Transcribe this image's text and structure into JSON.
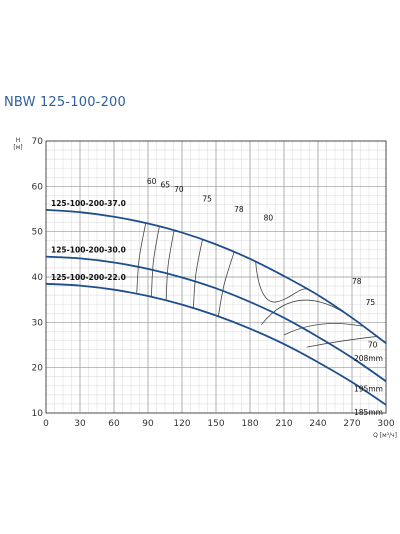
{
  "chart_data": {
    "type": "line",
    "title": "NBW 125-100-200",
    "ylabel_lines": [
      "H",
      "[м]"
    ],
    "xlabel": "Q [м³/ч]",
    "xlim": [
      0,
      300
    ],
    "ylim": [
      10,
      70
    ],
    "xticks": [
      "0",
      "30",
      "60",
      "90",
      "120",
      "150",
      "180",
      "210",
      "240",
      "270",
      "300"
    ],
    "yticks": [
      "10",
      "20",
      "30",
      "40",
      "50",
      "60",
      "70"
    ],
    "grid": true,
    "series": [
      {
        "name": "125-100-200-37.0",
        "diameter": "208mm",
        "x": [
          0,
          30,
          60,
          90,
          120,
          150,
          180,
          210,
          240,
          270,
          300
        ],
        "y": [
          54.8,
          54.3,
          53.3,
          51.8,
          49.8,
          47.2,
          44.0,
          40.2,
          36.0,
          31.0,
          25.4
        ]
      },
      {
        "name": "125-100-200-30.0",
        "diameter": "195mm",
        "x": [
          0,
          30,
          60,
          90,
          120,
          150,
          180,
          210,
          240,
          270,
          300
        ],
        "y": [
          44.5,
          44.1,
          43.2,
          41.8,
          39.9,
          37.5,
          34.5,
          31.0,
          26.8,
          22.2,
          17.0
        ]
      },
      {
        "name": "125-100-200-22.0",
        "diameter": "185mm",
        "x": [
          0,
          30,
          60,
          90,
          120,
          150,
          180,
          210,
          240,
          270,
          300
        ],
        "y": [
          38.5,
          38.1,
          37.2,
          35.8,
          33.9,
          31.5,
          28.6,
          25.2,
          21.2,
          16.8,
          11.8
        ]
      }
    ],
    "efficiency_labels": [
      "60",
      "65",
      "70",
      "75",
      "78",
      "80",
      "78",
      "75",
      "70"
    ],
    "colors": {
      "curve": "#1f4e8c",
      "grid_major": "#9a9a9a",
      "grid_minor": "#d9d9d9",
      "iso": "#444444",
      "title": "#2f5f9e"
    }
  }
}
